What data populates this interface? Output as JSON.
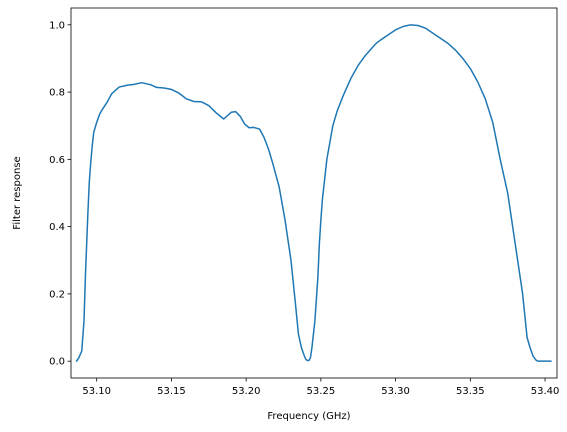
{
  "chart_data": {
    "type": "line",
    "title": "",
    "xlabel": "Frequency (GHz)",
    "ylabel": "Filter response",
    "xlim": [
      53.0828,
      53.408
    ],
    "ylim": [
      -0.05,
      1.05
    ],
    "grid": false,
    "line_color": "#1f77b4",
    "xticks": [
      53.1,
      53.15,
      53.2,
      53.25,
      53.3,
      53.35,
      53.4
    ],
    "xtick_labels": [
      "53.10",
      "53.15",
      "53.20",
      "53.25",
      "53.30",
      "53.35",
      "53.40"
    ],
    "yticks": [
      0.0,
      0.2,
      0.4,
      0.6,
      0.8,
      1.0
    ],
    "ytick_labels": [
      "0.0",
      "0.2",
      "0.4",
      "0.6",
      "0.8",
      "1.0"
    ],
    "series": [
      {
        "x": [
          53.0865,
          53.088,
          53.09,
          53.0915,
          53.0925,
          53.094,
          53.095,
          53.096,
          53.097,
          53.098,
          53.1,
          53.102,
          53.104,
          53.107,
          53.11,
          53.115,
          53.12,
          53.125,
          53.13,
          53.136,
          53.14,
          53.145,
          53.15,
          53.155,
          53.16,
          53.165,
          53.17,
          53.175,
          53.18,
          53.185,
          53.19,
          53.193,
          53.196,
          53.199,
          53.202,
          53.205,
          53.209,
          53.212,
          53.215,
          53.218,
          53.222,
          53.226,
          53.23,
          53.233,
          53.235,
          53.237,
          53.239,
          53.24,
          53.241,
          53.242,
          53.243,
          53.244,
          53.246,
          53.248,
          53.249,
          53.25,
          53.251,
          53.252,
          53.253,
          53.254,
          53.256,
          53.258,
          53.261,
          53.265,
          53.27,
          53.275,
          53.28,
          53.285,
          53.287,
          53.29,
          53.295,
          53.3,
          53.305,
          53.31,
          53.315,
          53.32,
          53.325,
          53.33,
          53.335,
          53.34,
          53.345,
          53.35,
          53.355,
          53.36,
          53.365,
          53.37,
          53.375,
          53.38,
          53.385,
          53.388,
          53.39,
          53.392,
          53.394,
          53.395,
          53.396,
          53.397,
          53.398,
          53.399,
          53.4,
          53.402,
          53.404
        ],
        "y": [
          0.0,
          0.01,
          0.03,
          0.12,
          0.26,
          0.43,
          0.53,
          0.59,
          0.64,
          0.68,
          0.71,
          0.735,
          0.75,
          0.77,
          0.795,
          0.815,
          0.82,
          0.823,
          0.828,
          0.822,
          0.814,
          0.812,
          0.808,
          0.797,
          0.78,
          0.772,
          0.771,
          0.76,
          0.738,
          0.72,
          0.74,
          0.742,
          0.728,
          0.705,
          0.694,
          0.695,
          0.69,
          0.665,
          0.63,
          0.585,
          0.52,
          0.42,
          0.3,
          0.17,
          0.08,
          0.04,
          0.015,
          0.005,
          0.002,
          0.002,
          0.01,
          0.04,
          0.12,
          0.25,
          0.35,
          0.42,
          0.48,
          0.52,
          0.56,
          0.6,
          0.65,
          0.7,
          0.745,
          0.79,
          0.84,
          0.88,
          0.91,
          0.935,
          0.945,
          0.955,
          0.97,
          0.985,
          0.995,
          1.0,
          0.998,
          0.99,
          0.975,
          0.96,
          0.945,
          0.925,
          0.9,
          0.87,
          0.83,
          0.78,
          0.71,
          0.6,
          0.5,
          0.35,
          0.2,
          0.07,
          0.04,
          0.015,
          0.003,
          0.0,
          0.0,
          0.0,
          0.0,
          0.0,
          0.0,
          0.0,
          0.0
        ]
      }
    ]
  }
}
